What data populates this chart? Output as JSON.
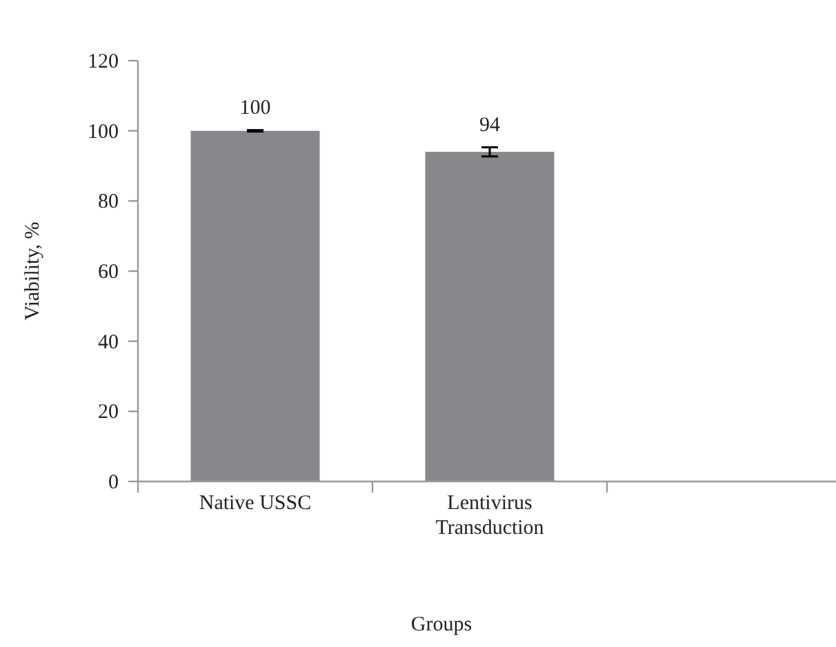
{
  "chart_data": {
    "type": "bar",
    "xlabel": "Groups",
    "ylabel": "Viability, %",
    "categories": [
      "Native USSC",
      "Lentivirus Transduction",
      null
    ],
    "values": [
      100,
      94,
      null
    ],
    "errors": [
      0.2,
      1.3,
      null
    ],
    "color": "#87888c",
    "ylim": [
      0,
      120
    ],
    "yticks": [
      0,
      20,
      40,
      60,
      80,
      100,
      120
    ],
    "data_labels": true,
    "grid": false
  }
}
